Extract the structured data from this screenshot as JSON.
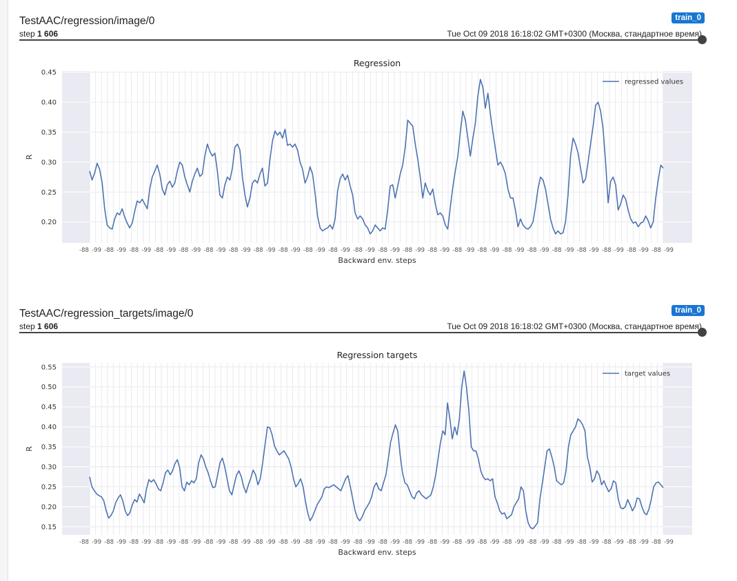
{
  "cards": [
    {
      "title": "TestAAC/regression/image/0",
      "badge": "train_0",
      "step_label": "step",
      "step_value": "1 606",
      "timestamp": "Tue Oct 09 2018 16:18:02 GMT+0300 (Москва, стандартное время)"
    },
    {
      "title": "TestAAC/regression_targets/image/0",
      "badge": "train_0",
      "step_label": "step",
      "step_value": "1 606",
      "timestamp": "Tue Oct 09 2018 16:18:02 GMT+0300 (Москва, стандартное время)"
    }
  ],
  "chart_data": [
    {
      "type": "line",
      "title": "Regression",
      "xlabel": "Backward env. steps",
      "ylabel": "R",
      "ylim": [
        0.165,
        0.452
      ],
      "yticks": [
        0.2,
        0.25,
        0.3,
        0.35,
        0.4,
        0.45
      ],
      "ytick_labels": [
        "0.20",
        "0.25",
        "0.30",
        "0.35",
        "0.40",
        "0.45"
      ],
      "grid": true,
      "legend": "top-right",
      "color": "#4c72b0",
      "series": [
        {
          "name": "regressed values",
          "values": [
            0.285,
            0.27,
            0.282,
            0.298,
            0.288,
            0.265,
            0.222,
            0.195,
            0.19,
            0.188,
            0.205,
            0.215,
            0.212,
            0.222,
            0.208,
            0.198,
            0.19,
            0.198,
            0.218,
            0.235,
            0.232,
            0.238,
            0.23,
            0.222,
            0.255,
            0.275,
            0.285,
            0.295,
            0.28,
            0.255,
            0.245,
            0.262,
            0.268,
            0.258,
            0.265,
            0.285,
            0.3,
            0.295,
            0.275,
            0.262,
            0.25,
            0.268,
            0.28,
            0.29,
            0.276,
            0.28,
            0.31,
            0.33,
            0.318,
            0.31,
            0.315,
            0.285,
            0.245,
            0.24,
            0.262,
            0.275,
            0.27,
            0.29,
            0.325,
            0.33,
            0.32,
            0.275,
            0.245,
            0.225,
            0.24,
            0.265,
            0.27,
            0.265,
            0.28,
            0.29,
            0.26,
            0.265,
            0.305,
            0.335,
            0.352,
            0.345,
            0.35,
            0.34,
            0.355,
            0.328,
            0.33,
            0.325,
            0.33,
            0.32,
            0.3,
            0.288,
            0.265,
            0.275,
            0.292,
            0.28,
            0.248,
            0.21,
            0.19,
            0.185,
            0.188,
            0.19,
            0.195,
            0.188,
            0.205,
            0.252,
            0.272,
            0.28,
            0.27,
            0.278,
            0.26,
            0.245,
            0.215,
            0.205,
            0.21,
            0.205,
            0.195,
            0.19,
            0.18,
            0.185,
            0.195,
            0.19,
            0.185,
            0.19,
            0.188,
            0.22,
            0.26,
            0.262,
            0.24,
            0.26,
            0.28,
            0.295,
            0.325,
            0.37,
            0.365,
            0.36,
            0.33,
            0.305,
            0.275,
            0.24,
            0.265,
            0.252,
            0.245,
            0.255,
            0.23,
            0.212,
            0.215,
            0.21,
            0.195,
            0.188,
            0.225,
            0.258,
            0.285,
            0.31,
            0.35,
            0.385,
            0.37,
            0.34,
            0.31,
            0.34,
            0.365,
            0.41,
            0.438,
            0.425,
            0.39,
            0.415,
            0.38,
            0.35,
            0.322,
            0.295,
            0.3,
            0.292,
            0.28,
            0.255,
            0.24,
            0.24,
            0.22,
            0.192,
            0.205,
            0.195,
            0.19,
            0.188,
            0.192,
            0.2,
            0.225,
            0.255,
            0.275,
            0.27,
            0.255,
            0.23,
            0.205,
            0.19,
            0.18,
            0.185,
            0.18,
            0.182,
            0.2,
            0.245,
            0.31,
            0.34,
            0.33,
            0.315,
            0.29,
            0.265,
            0.272,
            0.3,
            0.33,
            0.36,
            0.395,
            0.4,
            0.385,
            0.355,
            0.3,
            0.232,
            0.268,
            0.275,
            0.262,
            0.22,
            0.23,
            0.245,
            0.238,
            0.22,
            0.205,
            0.198,
            0.2,
            0.192,
            0.198,
            0.2,
            0.21,
            0.202,
            0.19,
            0.2,
            0.24,
            0.27,
            0.295,
            0.29
          ]
        }
      ]
    },
    {
      "type": "line",
      "title": "Regression targets",
      "xlabel": "Backward env. steps",
      "ylabel": "R",
      "ylim": [
        0.13,
        0.56
      ],
      "yticks": [
        0.15,
        0.2,
        0.25,
        0.3,
        0.35,
        0.4,
        0.45,
        0.5,
        0.55
      ],
      "ytick_labels": [
        "0.15",
        "0.20",
        "0.25",
        "0.30",
        "0.35",
        "0.40",
        "0.45",
        "0.50",
        "0.55"
      ],
      "grid": true,
      "legend": "top-right",
      "color": "#4c72b0",
      "series": [
        {
          "name": "target values",
          "values": [
            0.275,
            0.25,
            0.24,
            0.232,
            0.228,
            0.225,
            0.215,
            0.19,
            0.172,
            0.178,
            0.19,
            0.21,
            0.222,
            0.23,
            0.215,
            0.19,
            0.178,
            0.185,
            0.205,
            0.218,
            0.212,
            0.232,
            0.222,
            0.21,
            0.245,
            0.268,
            0.262,
            0.268,
            0.258,
            0.245,
            0.24,
            0.26,
            0.285,
            0.292,
            0.28,
            0.29,
            0.308,
            0.318,
            0.298,
            0.25,
            0.24,
            0.262,
            0.255,
            0.265,
            0.26,
            0.27,
            0.31,
            0.33,
            0.32,
            0.3,
            0.285,
            0.265,
            0.248,
            0.25,
            0.28,
            0.31,
            0.322,
            0.3,
            0.27,
            0.24,
            0.23,
            0.255,
            0.28,
            0.29,
            0.275,
            0.25,
            0.235,
            0.255,
            0.272,
            0.292,
            0.28,
            0.255,
            0.27,
            0.31,
            0.355,
            0.4,
            0.398,
            0.38,
            0.352,
            0.34,
            0.33,
            0.335,
            0.34,
            0.33,
            0.32,
            0.3,
            0.27,
            0.25,
            0.258,
            0.27,
            0.252,
            0.215,
            0.185,
            0.165,
            0.175,
            0.19,
            0.205,
            0.215,
            0.225,
            0.245,
            0.25,
            0.248,
            0.252,
            0.255,
            0.25,
            0.245,
            0.24,
            0.255,
            0.27,
            0.278,
            0.25,
            0.22,
            0.19,
            0.172,
            0.165,
            0.175,
            0.19,
            0.2,
            0.21,
            0.225,
            0.25,
            0.26,
            0.245,
            0.24,
            0.26,
            0.28,
            0.32,
            0.362,
            0.385,
            0.405,
            0.39,
            0.33,
            0.285,
            0.26,
            0.255,
            0.24,
            0.225,
            0.22,
            0.235,
            0.24,
            0.23,
            0.225,
            0.22,
            0.225,
            0.23,
            0.25,
            0.28,
            0.32,
            0.36,
            0.39,
            0.38,
            0.46,
            0.42,
            0.37,
            0.4,
            0.38,
            0.42,
            0.5,
            0.54,
            0.5,
            0.44,
            0.35,
            0.34,
            0.34,
            0.32,
            0.29,
            0.275,
            0.268,
            0.27,
            0.265,
            0.27,
            0.225,
            0.21,
            0.19,
            0.182,
            0.185,
            0.17,
            0.175,
            0.18,
            0.2,
            0.21,
            0.22,
            0.25,
            0.24,
            0.19,
            0.16,
            0.148,
            0.145,
            0.152,
            0.16,
            0.22,
            0.26,
            0.3,
            0.34,
            0.345,
            0.325,
            0.3,
            0.265,
            0.26,
            0.255,
            0.26,
            0.29,
            0.35,
            0.38,
            0.39,
            0.4,
            0.42,
            0.415,
            0.405,
            0.39,
            0.325,
            0.3,
            0.262,
            0.27,
            0.29,
            0.28,
            0.255,
            0.265,
            0.25,
            0.238,
            0.245,
            0.265,
            0.26,
            0.22,
            0.198,
            0.195,
            0.2,
            0.218,
            0.205,
            0.19,
            0.2,
            0.222,
            0.22,
            0.2,
            0.185,
            0.18,
            0.195,
            0.22,
            0.25,
            0.26,
            0.262,
            0.255,
            0.248
          ]
        }
      ]
    }
  ]
}
